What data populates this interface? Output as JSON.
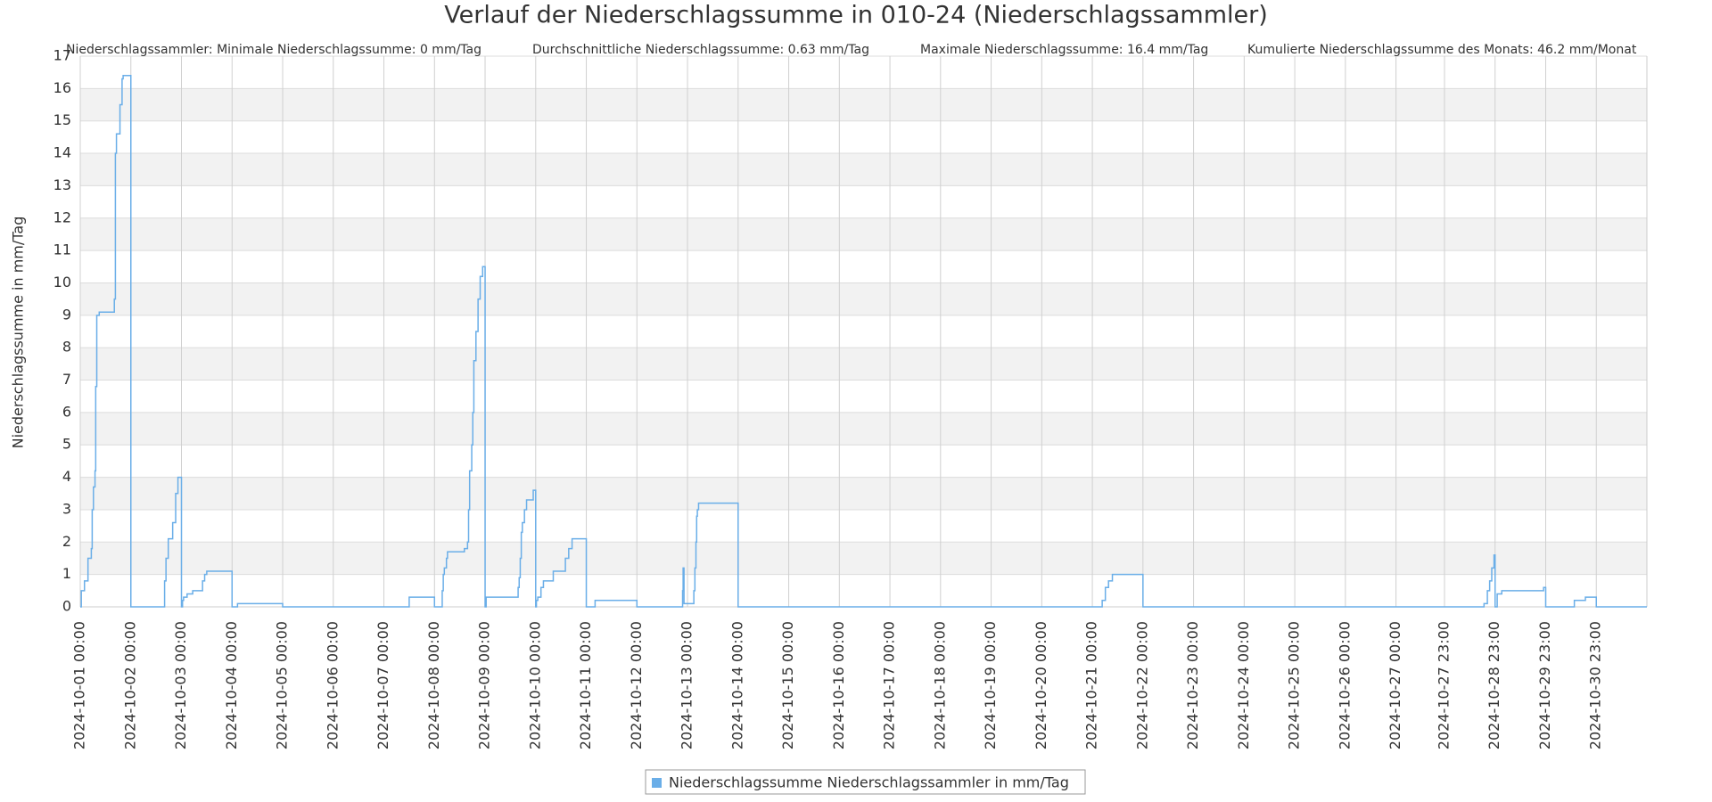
{
  "chart_data": {
    "type": "line",
    "step": "after",
    "title": "Verlauf der Niederschlagssumme in 010-24 (Niederschlagssammler)",
    "stats": [
      "Niederschlagssammler: Minimale Niederschlagssumme: 0 mm/Tag",
      "Durchschnittliche Niederschlagssumme: 0.63 mm/Tag",
      "Maximale Niederschlagssumme: 16.4 mm/Tag",
      "Kumulierte Niederschlagssumme des Monats: 46.2 mm/Monat"
    ],
    "y_label": "Niederschlagssumme in mm/Tag",
    "xlim": [
      "2024-10-01 00:00",
      "2024-10-31 23:00"
    ],
    "xticks": [
      "2024-10-01 00:00",
      "2024-10-02 00:00",
      "2024-10-03 00:00",
      "2024-10-04 00:00",
      "2024-10-05 00:00",
      "2024-10-06 00:00",
      "2024-10-07 00:00",
      "2024-10-08 00:00",
      "2024-10-09 00:00",
      "2024-10-10 00:00",
      "2024-10-11 00:00",
      "2024-10-12 00:00",
      "2024-10-13 00:00",
      "2024-10-14 00:00",
      "2024-10-15 00:00",
      "2024-10-16 00:00",
      "2024-10-17 00:00",
      "2024-10-18 00:00",
      "2024-10-19 00:00",
      "2024-10-20 00:00",
      "2024-10-21 00:00",
      "2024-10-22 00:00",
      "2024-10-23 00:00",
      "2024-10-24 00:00",
      "2024-10-25 00:00",
      "2024-10-26 00:00",
      "2024-10-27 00:00",
      "2024-10-27 23:00",
      "2024-10-28 23:00",
      "2024-10-29 23:00",
      "2024-10-30 23:00"
    ],
    "ylim": [
      0,
      17
    ],
    "yticks": [
      0,
      1,
      2,
      3,
      4,
      5,
      6,
      7,
      8,
      9,
      10,
      11,
      12,
      13,
      14,
      15,
      16,
      17
    ],
    "grid": true,
    "bands": true,
    "x": [
      "2024-10-01 00:00",
      "2024-10-01 00:30",
      "2024-10-01 02:00",
      "2024-10-01 03:40",
      "2024-10-01 05:15",
      "2024-10-01 05:40",
      "2024-10-01 06:15",
      "2024-10-01 07:00",
      "2024-10-01 07:20",
      "2024-10-01 07:50",
      "2024-10-01 09:00",
      "2024-10-01 16:10",
      "2024-10-01 16:40",
      "2024-10-01 17:10",
      "2024-10-01 18:50",
      "2024-10-01 19:50",
      "2024-10-01 20:20",
      "2024-10-02 00:00",
      "2024-10-02 16:00",
      "2024-10-02 16:40",
      "2024-10-02 17:45",
      "2024-10-02 19:50",
      "2024-10-02 21:15",
      "2024-10-02 22:20",
      "2024-10-03 00:00",
      "2024-10-03 00:30",
      "2024-10-03 01:00",
      "2024-10-03 02:40",
      "2024-10-03 05:20",
      "2024-10-03 10:00",
      "2024-10-03 11:00",
      "2024-10-03 12:00",
      "2024-10-04 00:00",
      "2024-10-04 02:35",
      "2024-10-05 00:00",
      "2024-10-07 12:00",
      "2024-10-08 00:00",
      "2024-10-08 03:40",
      "2024-10-08 04:10",
      "2024-10-08 04:40",
      "2024-10-08 05:40",
      "2024-10-08 06:10",
      "2024-10-08 07:20",
      "2024-10-08 14:10",
      "2024-10-08 15:40",
      "2024-10-08 16:10",
      "2024-10-08 16:40",
      "2024-10-08 17:40",
      "2024-10-08 18:10",
      "2024-10-08 18:40",
      "2024-10-08 19:40",
      "2024-10-08 20:40",
      "2024-10-08 21:40",
      "2024-10-08 22:50",
      "2024-10-09 00:00",
      "2024-10-09 00:30",
      "2024-10-09 15:40",
      "2024-10-09 16:10",
      "2024-10-09 16:40",
      "2024-10-09 17:10",
      "2024-10-09 17:40",
      "2024-10-09 18:40",
      "2024-10-09 19:40",
      "2024-10-09 20:40",
      "2024-10-09 22:50",
      "2024-10-10 00:00",
      "2024-10-10 00:20",
      "2024-10-10 01:00",
      "2024-10-10 02:30",
      "2024-10-10 03:40",
      "2024-10-10 08:20",
      "2024-10-10 14:05",
      "2024-10-10 15:40",
      "2024-10-10 17:15",
      "2024-10-11 00:00",
      "2024-10-11 04:10",
      "2024-10-12 00:00",
      "2024-10-12 21:40",
      "2024-10-12 21:55",
      "2024-10-12 22:20",
      "2024-10-13 03:00",
      "2024-10-13 03:30",
      "2024-10-13 04:00",
      "2024-10-13 04:20",
      "2024-10-13 04:40",
      "2024-10-13 05:15",
      "2024-10-14 00:00",
      "2024-10-21 04:40",
      "2024-10-21 06:10",
      "2024-10-21 07:40",
      "2024-10-21 09:30",
      "2024-10-22 00:00",
      "2024-10-28 17:45",
      "2024-10-28 19:20",
      "2024-10-28 20:25",
      "2024-10-28 21:25",
      "2024-10-28 22:30",
      "2024-10-28 23:00",
      "2024-10-29 00:00",
      "2024-10-29 02:10",
      "2024-10-29 22:00",
      "2024-10-29 23:00",
      "2024-10-30 12:35",
      "2024-10-30 17:50",
      "2024-10-30 23:00",
      "2024-10-31 23:00"
    ],
    "series": [
      {
        "name": "Niederschlagssumme Niederschlagssammler in mm/Tag",
        "color": "#6aaee8",
        "values": [
          0,
          0.5,
          0.8,
          1.5,
          1.8,
          3,
          3.7,
          4.2,
          6.8,
          9,
          9.1,
          9.5,
          14,
          14.6,
          15.5,
          16.3,
          16.4,
          0,
          0.8,
          1.5,
          2.1,
          2.6,
          3.5,
          4,
          0,
          0.2,
          0.3,
          0.4,
          0.5,
          0.8,
          1,
          1.1,
          0,
          0.1,
          0,
          0.3,
          0,
          0.5,
          1,
          1.2,
          1.5,
          1.7,
          1.7,
          1.8,
          2,
          3,
          4.2,
          5,
          6,
          7.6,
          8.5,
          9.5,
          10.2,
          10.5,
          0,
          0.3,
          0.6,
          0.9,
          1.5,
          2.3,
          2.6,
          3,
          3.3,
          3.3,
          3.6,
          0,
          0.2,
          0.3,
          0.6,
          0.8,
          1.1,
          1.5,
          1.8,
          2.1,
          0,
          0.2,
          0,
          0.5,
          1.2,
          0.1,
          0.5,
          1.2,
          2,
          2.8,
          3,
          3.2,
          0,
          0.2,
          0.6,
          0.8,
          1,
          0,
          0.1,
          0.5,
          0.8,
          1.2,
          1.6,
          0,
          0.4,
          0.5,
          0.6,
          0,
          0.2,
          0.3,
          0,
          0
        ]
      }
    ]
  }
}
